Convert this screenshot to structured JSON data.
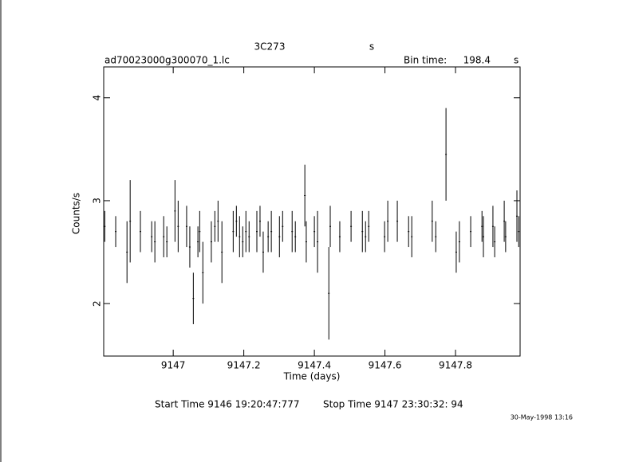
{
  "chart_data": {
    "type": "errorbar",
    "title": "3C273",
    "title_unit": "s",
    "file_name": "ad70023000g300070_1.lc",
    "bin_time_label": "Bin time:",
    "bin_time": "198.4",
    "bin_time_unit": "s",
    "x_label": "Time (days)",
    "y_label": "Counts/s",
    "start_time": "Start Time  9146 19:20:47:777",
    "stop_time": "Stop Time  9147 23:30:32: 94",
    "timestamp": "30-May-1998 13:16",
    "color": "#000000",
    "xlim": [
      9146.803,
      9147.983
    ],
    "xticks": [
      9147,
      9147.2,
      9147.4,
      9147.6,
      9147.8
    ],
    "ylim": [
      1.49,
      4.3
    ],
    "yticks": [
      2,
      3,
      4
    ],
    "x": [
      9146.806,
      9146.837,
      9146.869,
      9146.878,
      9146.907,
      9146.939,
      9146.948,
      9146.973,
      9146.982,
      9147.005,
      9147.014,
      9147.038,
      9147.047,
      9147.057,
      9147.07,
      9147.075,
      9147.084,
      9147.108,
      9147.118,
      9147.127,
      9147.138,
      9147.17,
      9147.179,
      9147.188,
      9147.197,
      9147.206,
      9147.215,
      9147.237,
      9147.246,
      9147.255,
      9147.269,
      9147.278,
      9147.301,
      9147.31,
      9147.337,
      9147.346,
      9147.373,
      9147.377,
      9147.4,
      9147.409,
      9147.441,
      9147.445,
      9147.472,
      9147.504,
      9147.536,
      9147.545,
      9147.554,
      9147.599,
      9147.608,
      9147.635,
      9147.667,
      9147.676,
      9147.734,
      9147.744,
      9147.773,
      9147.802,
      9147.811,
      9147.843,
      9147.875,
      9147.879,
      9147.906,
      9147.911,
      9147.938,
      9147.942,
      9147.974,
      9147.979
    ],
    "values": [
      2.75,
      2.7,
      2.5,
      2.8,
      2.7,
      2.65,
      2.6,
      2.65,
      2.6,
      2.9,
      2.75,
      2.75,
      2.55,
      2.05,
      2.6,
      2.7,
      2.3,
      2.6,
      2.75,
      2.8,
      2.5,
      2.7,
      2.8,
      2.65,
      2.6,
      2.7,
      2.65,
      2.7,
      2.8,
      2.5,
      2.65,
      2.7,
      2.65,
      2.75,
      2.7,
      2.65,
      3.05,
      2.6,
      2.7,
      2.6,
      2.1,
      2.75,
      2.65,
      2.75,
      2.7,
      2.65,
      2.75,
      2.65,
      2.8,
      2.8,
      2.7,
      2.65,
      2.8,
      2.65,
      3.45,
      2.5,
      2.6,
      2.7,
      2.75,
      2.65,
      2.75,
      2.6,
      2.8,
      2.65,
      2.85,
      2.7
    ],
    "errors": [
      0.15,
      0.15,
      0.3,
      0.4,
      0.2,
      0.15,
      0.2,
      0.2,
      0.15,
      0.3,
      0.25,
      0.2,
      0.2,
      0.25,
      0.15,
      0.2,
      0.3,
      0.2,
      0.15,
      0.2,
      0.3,
      0.2,
      0.15,
      0.2,
      0.15,
      0.2,
      0.15,
      0.2,
      0.15,
      0.2,
      0.15,
      0.2,
      0.2,
      0.15,
      0.2,
      0.15,
      0.3,
      0.2,
      0.15,
      0.3,
      0.45,
      0.2,
      0.15,
      0.15,
      0.2,
      0.15,
      0.15,
      0.15,
      0.2,
      0.2,
      0.15,
      0.2,
      0.2,
      0.15,
      0.45,
      0.2,
      0.2,
      0.15,
      0.15,
      0.2,
      0.2,
      0.15,
      0.2,
      0.15,
      0.25,
      0.15
    ]
  }
}
